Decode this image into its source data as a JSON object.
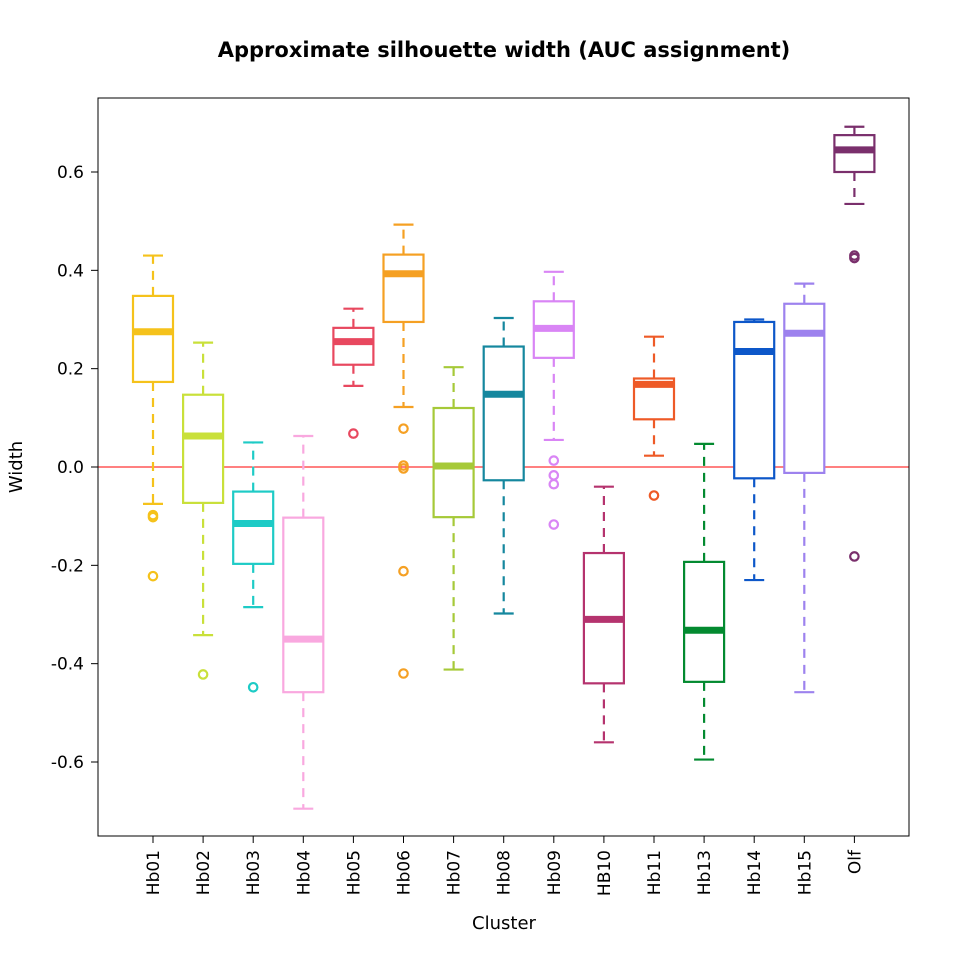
{
  "chart_data": {
    "type": "boxplot",
    "title": "Approximate silhouette width (AUC assignment)",
    "xlabel": "Cluster",
    "ylabel": "Width",
    "ylim": [
      -0.75,
      0.75
    ],
    "yticks": [
      -0.6,
      -0.4,
      -0.2,
      0.0,
      0.2,
      0.4,
      0.6
    ],
    "ytick_labels": [
      "-0.6",
      "-0.4",
      "-0.2",
      "0.0",
      "0.2",
      "0.4",
      "0.6"
    ],
    "reference_line": {
      "y": 0.0,
      "color": "#ff0000"
    },
    "boxes": [
      {
        "name": "Hb01",
        "color": "#f5c21b",
        "whisker_low": -0.075,
        "q1": 0.173,
        "median": 0.275,
        "q3": 0.348,
        "whisker_high": 0.43,
        "outliers": [
          -0.098,
          -0.102,
          -0.222
        ]
      },
      {
        "name": "Hb02",
        "color": "#c9e03a",
        "whisker_low": -0.342,
        "q1": -0.073,
        "median": 0.063,
        "q3": 0.147,
        "whisker_high": 0.253,
        "outliers": [
          -0.422
        ]
      },
      {
        "name": "Hb03",
        "color": "#1ecbc6",
        "whisker_low": -0.285,
        "q1": -0.197,
        "median": -0.115,
        "q3": -0.05,
        "whisker_high": 0.05,
        "outliers": [
          -0.448
        ]
      },
      {
        "name": "Hb04",
        "color": "#f9a8df",
        "whisker_low": -0.695,
        "q1": -0.458,
        "median": -0.35,
        "q3": -0.103,
        "whisker_high": 0.063,
        "outliers": []
      },
      {
        "name": "Hb05",
        "color": "#e8485f",
        "whisker_low": 0.165,
        "q1": 0.208,
        "median": 0.255,
        "q3": 0.283,
        "whisker_high": 0.322,
        "outliers": [
          0.068
        ]
      },
      {
        "name": "Hb06",
        "color": "#f5a023",
        "whisker_low": 0.122,
        "q1": 0.295,
        "median": 0.393,
        "q3": 0.432,
        "whisker_high": 0.493,
        "outliers": [
          0.078,
          0.003,
          -0.003,
          -0.212,
          -0.42
        ]
      },
      {
        "name": "Hb07",
        "color": "#a6c938",
        "whisker_low": -0.412,
        "q1": -0.102,
        "median": 0.002,
        "q3": 0.12,
        "whisker_high": 0.203,
        "outliers": []
      },
      {
        "name": "Hb08",
        "color": "#15879e",
        "whisker_low": -0.298,
        "q1": -0.027,
        "median": 0.148,
        "q3": 0.245,
        "whisker_high": 0.303,
        "outliers": []
      },
      {
        "name": "Hb09",
        "color": "#d985f5",
        "whisker_low": 0.055,
        "q1": 0.222,
        "median": 0.282,
        "q3": 0.337,
        "whisker_high": 0.397,
        "outliers": [
          0.013,
          -0.017,
          -0.035,
          -0.117
        ]
      },
      {
        "name": "HB10",
        "color": "#b5336e",
        "whisker_low": -0.56,
        "q1": -0.44,
        "median": -0.31,
        "q3": -0.175,
        "whisker_high": -0.04,
        "outliers": []
      },
      {
        "name": "Hb11",
        "color": "#ee5a27",
        "whisker_low": 0.023,
        "q1": 0.097,
        "median": 0.168,
        "q3": 0.18,
        "whisker_high": 0.265,
        "outliers": [
          -0.058
        ]
      },
      {
        "name": "Hb13",
        "color": "#038a30",
        "whisker_low": -0.595,
        "q1": -0.437,
        "median": -0.332,
        "q3": -0.193,
        "whisker_high": 0.047,
        "outliers": []
      },
      {
        "name": "Hb14",
        "color": "#0d57c9",
        "whisker_low": -0.23,
        "q1": -0.023,
        "median": 0.235,
        "q3": 0.295,
        "whisker_high": 0.3,
        "outliers": []
      },
      {
        "name": "Hb15",
        "color": "#9d82ee",
        "whisker_low": -0.458,
        "q1": -0.012,
        "median": 0.272,
        "q3": 0.332,
        "whisker_high": 0.373,
        "outliers": []
      },
      {
        "name": "Olf",
        "color": "#7a2f6c",
        "whisker_low": 0.535,
        "q1": 0.6,
        "median": 0.645,
        "q3": 0.675,
        "whisker_high": 0.692,
        "outliers": [
          0.43,
          0.425,
          -0.182
        ]
      }
    ]
  }
}
